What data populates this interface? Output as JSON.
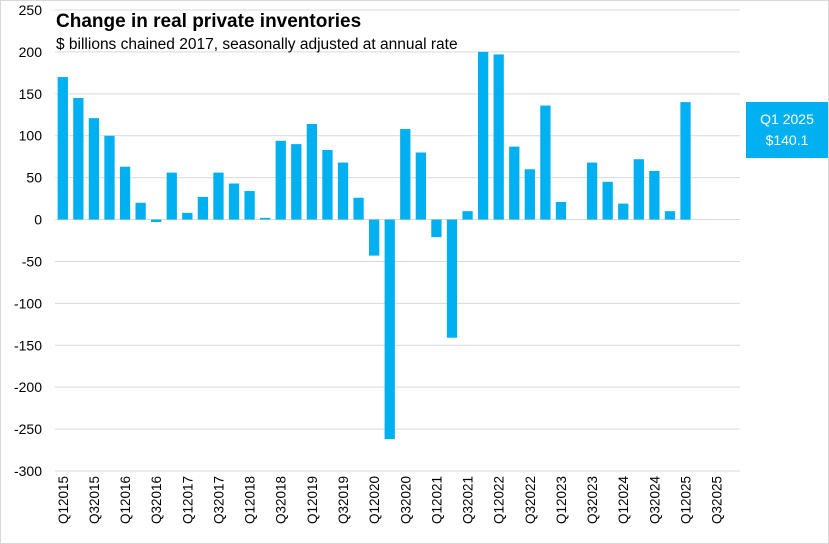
{
  "chart_data": {
    "type": "bar",
    "title": "Change in real private inventories",
    "subtitle": "$ billions chained 2017, seasonally adjusted at annual rate",
    "xlabel": "",
    "ylabel": "",
    "ylim": [
      -300,
      250
    ],
    "y_ticks": [
      250,
      200,
      150,
      100,
      50,
      0,
      -50,
      -100,
      -150,
      -200,
      -250,
      -300
    ],
    "grid": true,
    "bar_color": "#00b0f0",
    "grid_color": "#d9d9d9",
    "categories": [
      "Q1 2015",
      "Q2 2015",
      "Q3 2015",
      "Q4 2015",
      "Q1 2016",
      "Q2 2016",
      "Q3 2016",
      "Q4 2016",
      "Q1 2017",
      "Q2 2017",
      "Q3 2017",
      "Q4 2017",
      "Q1 2018",
      "Q2 2018",
      "Q3 2018",
      "Q4 2018",
      "Q1 2019",
      "Q2 2019",
      "Q3 2019",
      "Q4 2019",
      "Q1 2020",
      "Q2 2020",
      "Q3 2020",
      "Q4 2020",
      "Q1 2021",
      "Q2 2021",
      "Q3 2021",
      "Q4 2021",
      "Q1 2022",
      "Q2 2022",
      "Q3 2022",
      "Q4 2022",
      "Q1 2023",
      "Q2 2023",
      "Q3 2023",
      "Q4 2023",
      "Q1 2024",
      "Q2 2024",
      "Q3 2024",
      "Q4 2024",
      "Q1 2025",
      "Q2 2025",
      "Q3 2025",
      "Q4 2025"
    ],
    "tick_labels": [
      "Q1 2015",
      "Q3 2015",
      "Q1 2016",
      "Q3 2016",
      "Q1 2017",
      "Q3 2017",
      "Q1 2018",
      "Q3 2018",
      "Q1 2019",
      "Q3 2019",
      "Q1 2020",
      "Q3 2020",
      "Q1 2021",
      "Q3 2021",
      "Q1 2022",
      "Q3 2022",
      "Q1 2023",
      "Q3 2023",
      "Q1 2024",
      "Q3 2024",
      "Q1 2025",
      "Q3 2025"
    ],
    "values": [
      170,
      145,
      121,
      100,
      63,
      20,
      -3,
      56,
      8,
      27,
      56,
      43,
      34,
      2,
      94,
      90,
      114,
      83,
      68,
      26,
      -43,
      -262,
      108,
      80,
      -21,
      -141,
      10,
      200,
      197,
      87,
      60,
      136,
      21,
      null,
      68,
      45,
      19,
      72,
      58,
      10,
      140.1,
      null,
      null,
      null
    ],
    "annotation": {
      "label": "Q1 2025",
      "value_text": "$140.1"
    }
  }
}
